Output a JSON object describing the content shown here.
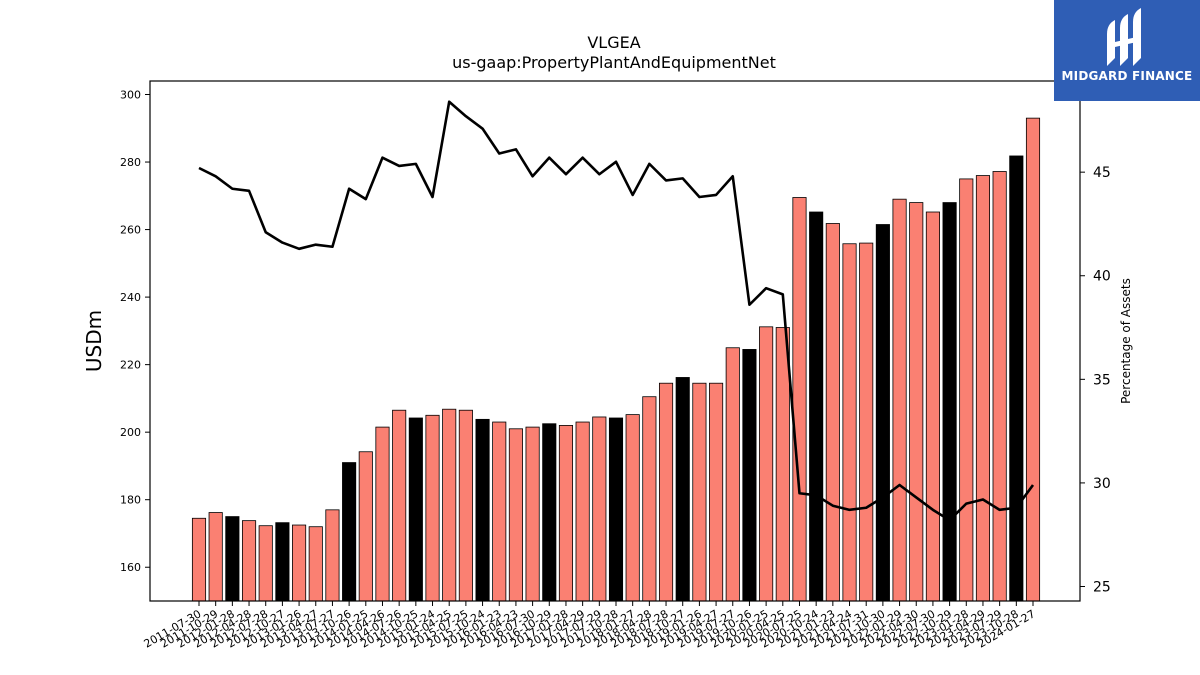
{
  "chart_data": {
    "type": "bar",
    "title": "VLGEA",
    "subtitle": "us-gaap:PropertyPlantAndEquipmentNet",
    "ylabel": "USDm",
    "y2label": "Percentage of Assets",
    "ylim": [
      150,
      304
    ],
    "y2lim": [
      24.3,
      49.4
    ],
    "yticks": [
      160,
      180,
      200,
      220,
      240,
      260,
      280,
      300
    ],
    "y2ticks": [
      25,
      30,
      35,
      40,
      45
    ],
    "categories": [
      "2011-07-30",
      "2011-10-29",
      "2012-01-28",
      "2012-04-28",
      "2012-07-28",
      "2012-10-27",
      "2013-01-26",
      "2013-04-27",
      "2013-07-27",
      "2013-10-26",
      "2014-01-25",
      "2014-04-26",
      "2014-07-26",
      "2014-10-25",
      "2015-01-24",
      "2015-04-25",
      "2015-07-25",
      "2015-10-24",
      "2016-01-23",
      "2016-04-23",
      "2016-07-30",
      "2016-10-29",
      "2017-01-28",
      "2017-04-29",
      "2017-07-29",
      "2017-10-28",
      "2018-01-27",
      "2018-04-28",
      "2018-07-28",
      "2018-10-27",
      "2019-01-26",
      "2019-04-27",
      "2019-07-27",
      "2019-10-26",
      "2020-01-25",
      "2020-04-25",
      "2020-07-25",
      "2020-10-24",
      "2021-01-23",
      "2021-04-24",
      "2021-07-31",
      "2021-10-30",
      "2022-01-29",
      "2022-04-30",
      "2022-07-30",
      "2022-10-29",
      "2023-01-28",
      "2023-04-29",
      "2023-07-29",
      "2023-10-28",
      "2024-01-27"
    ],
    "series": [
      {
        "values": [
          174.5,
          176.2,
          175.0,
          173.8,
          172.3,
          173.2,
          172.5,
          172.0,
          177.0,
          191.0,
          194.2,
          201.5,
          206.5,
          204.2,
          205.0,
          206.8,
          206.5,
          203.8,
          203.0,
          201.0,
          201.5,
          202.5,
          202.0,
          203.0,
          204.5,
          204.2,
          205.2,
          210.5,
          214.5,
          216.2,
          214.5,
          214.5,
          225.0,
          224.5,
          231.2,
          231.0,
          269.5,
          265.2,
          261.8,
          255.8,
          256.0,
          261.5,
          269.0,
          268.0,
          265.2,
          268.0,
          275.0,
          276.0,
          277.2,
          281.8,
          293.0
        ],
        "highlight": [
          false,
          false,
          true,
          false,
          false,
          true,
          false,
          false,
          false,
          true,
          false,
          false,
          false,
          true,
          false,
          false,
          false,
          true,
          false,
          false,
          false,
          true,
          false,
          false,
          false,
          true,
          false,
          false,
          false,
          true,
          false,
          false,
          false,
          true,
          false,
          false,
          false,
          true,
          false,
          false,
          false,
          true,
          false,
          false,
          false,
          true,
          false,
          false,
          false,
          true,
          false
        ]
      },
      {
        "values": [
          45.2,
          44.8,
          44.2,
          44.1,
          42.1,
          41.6,
          41.3,
          41.5,
          41.4,
          44.2,
          43.7,
          45.7,
          45.3,
          45.4,
          43.8,
          48.4,
          47.7,
          47.1,
          45.9,
          46.1,
          44.8,
          45.7,
          44.9,
          45.7,
          44.9,
          45.5,
          43.9,
          45.4,
          44.6,
          44.7,
          43.8,
          43.9,
          44.8,
          38.6,
          39.4,
          39.1,
          29.5,
          29.4,
          28.9,
          28.7,
          28.8,
          29.3,
          29.9,
          29.3,
          28.7,
          28.2,
          29.0,
          29.2,
          28.7,
          28.8,
          29.9
        ]
      }
    ],
    "colors": {
      "bar": "#fa8072",
      "bar_highlight": "#000000",
      "line": "#000000"
    }
  },
  "logo": {
    "text": "MIDGARD FINANCE",
    "bg": "#2f5eb5"
  }
}
